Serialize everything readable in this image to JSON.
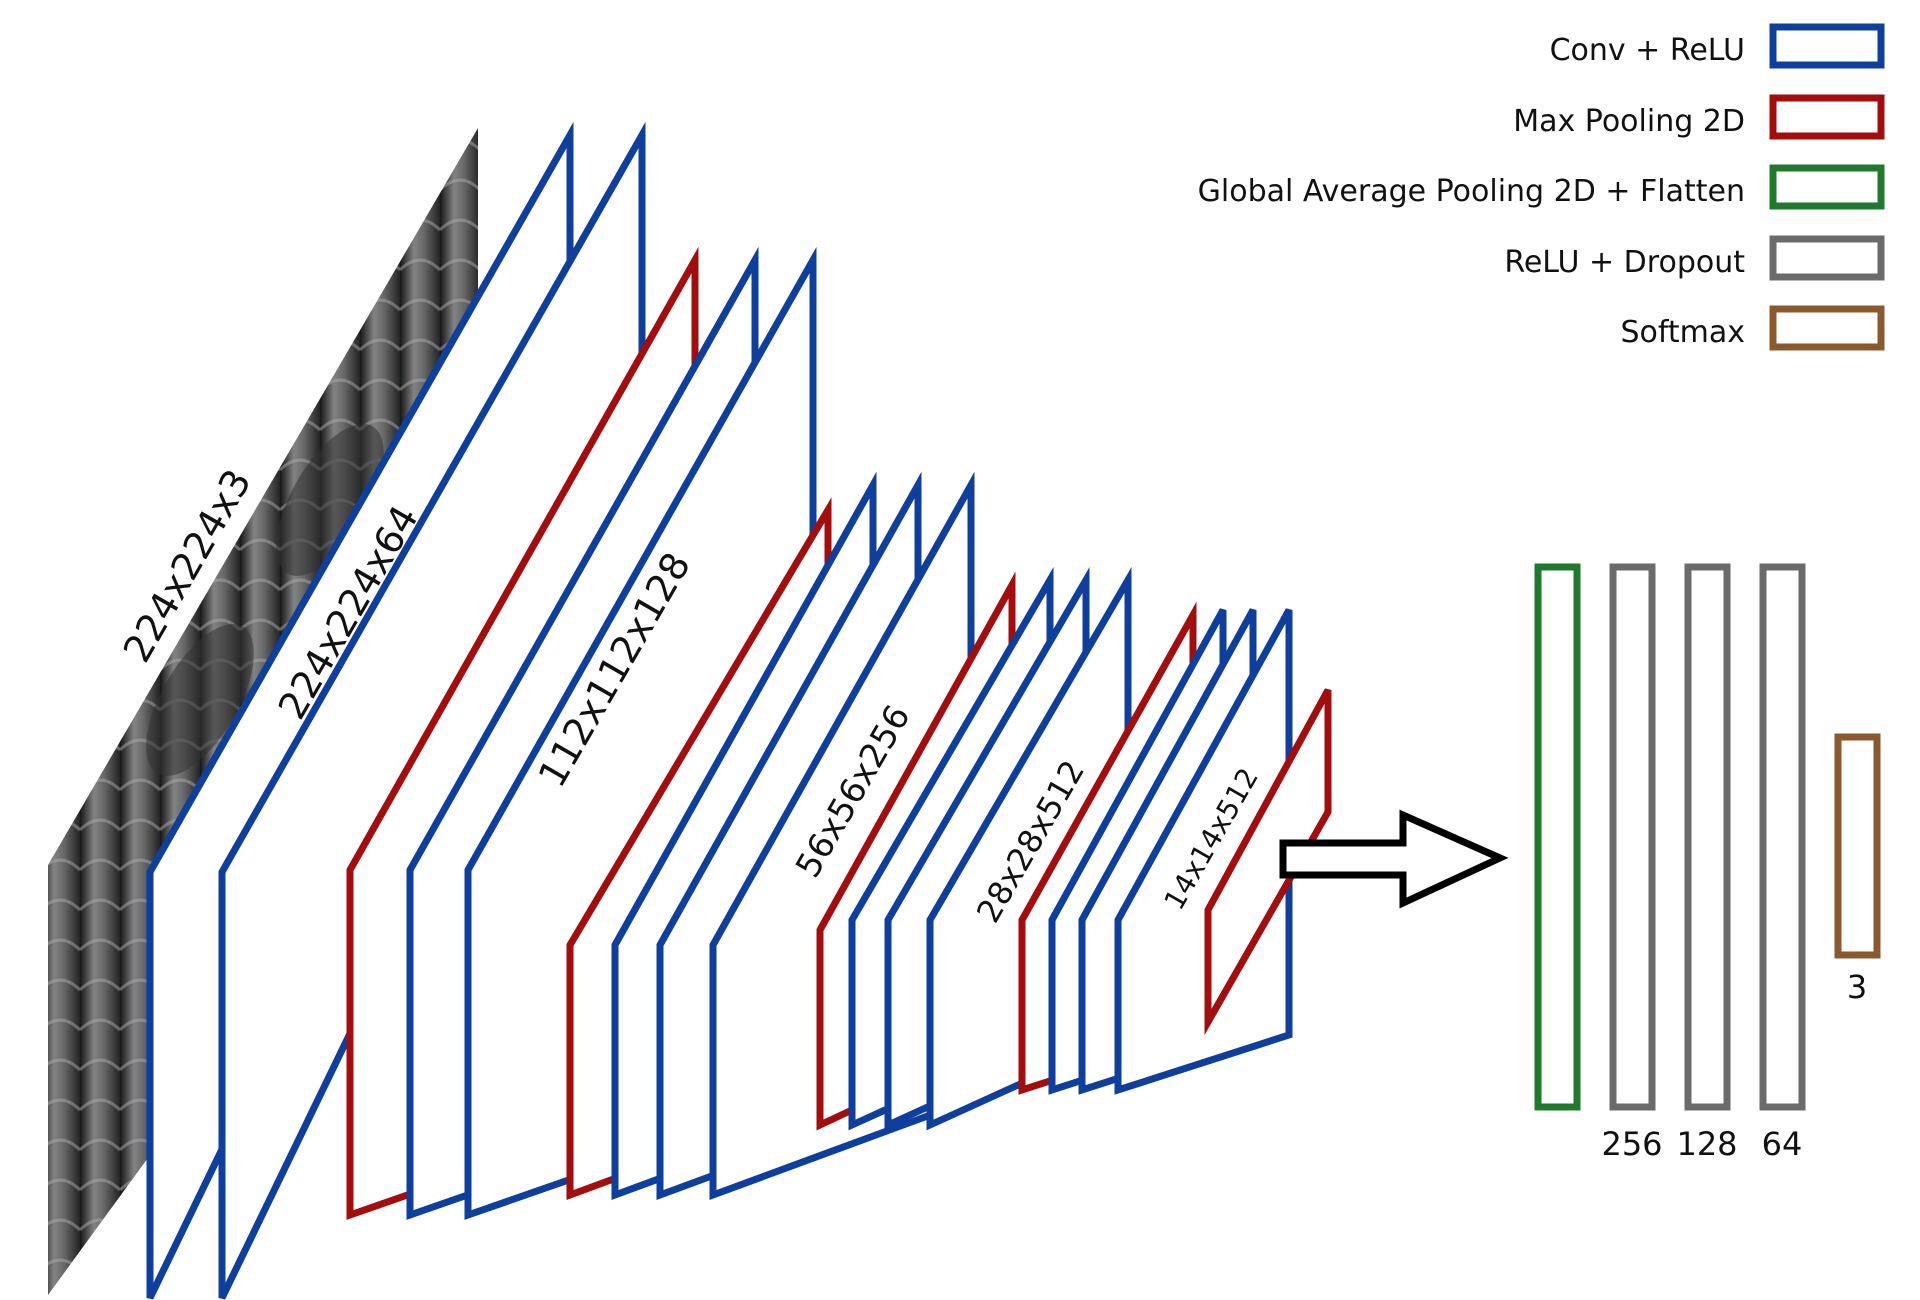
{
  "colors": {
    "conv_relu": "#0f3f9c",
    "max_pooling": "#a30d0d",
    "gap_flatten": "#1f7a2e",
    "relu_dropout": "#6b6b6b",
    "softmax": "#8a5a2e",
    "arrow": "#000000"
  },
  "legend": [
    {
      "label": "Conv + ReLU",
      "color": "#0f3f9c"
    },
    {
      "label": "Max Pooling 2D",
      "color": "#a30d0d"
    },
    {
      "label": "Global Average Pooling 2D + Flatten",
      "color": "#1f7a2e"
    },
    {
      "label": "ReLU + Dropout",
      "color": "#6b6b6b"
    },
    {
      "label": "Softmax",
      "color": "#8a5a2e"
    }
  ],
  "input": {
    "label": "224x224x3",
    "image": "chest-xray"
  },
  "feature_maps": [
    {
      "label": "224x224x64"
    },
    {
      "label": "112x112x128"
    },
    {
      "label": "56x56x256"
    },
    {
      "label": "28x28x512"
    },
    {
      "label": "14x14x512"
    }
  ],
  "dense_layers": [
    {
      "label": "",
      "type": "gap_flatten"
    },
    {
      "label": "256",
      "type": "relu_dropout"
    },
    {
      "label": "128",
      "type": "relu_dropout"
    },
    {
      "label": "64",
      "type": "relu_dropout"
    },
    {
      "label": "3",
      "type": "softmax"
    }
  ],
  "arrow_icon": "right-arrow-icon"
}
